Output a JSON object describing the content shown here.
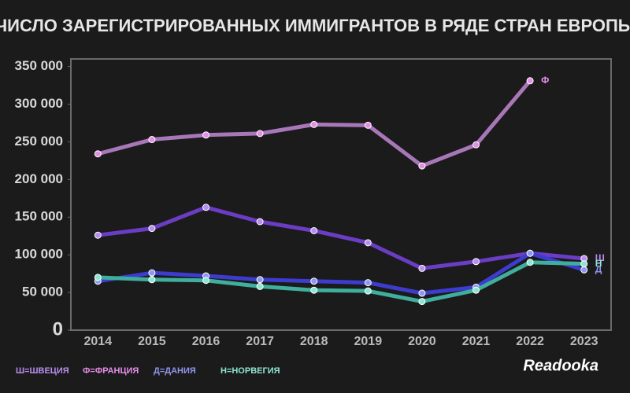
{
  "chart_data": {
    "type": "line",
    "title": "ЧИСЛО ЗАРЕГИСТРИРОВАННЫХ ИММИГРАНТОВ В РЯДЕ СТРАН ЕВРОПЫ",
    "categories": [
      "2014",
      "2015",
      "2016",
      "2017",
      "2018",
      "2019",
      "2020",
      "2021",
      "2022",
      "2023"
    ],
    "series": [
      {
        "name": "Ш=ШВЕЦИЯ",
        "end_label": "Ш",
        "color": "#6b3cc4",
        "point_color": "#b98ef0",
        "values": [
          126000,
          135000,
          163000,
          144000,
          132000,
          116000,
          82000,
          91000,
          102000,
          95000
        ]
      },
      {
        "name": "Ф=ФРАНЦИЯ",
        "end_label": "Ф",
        "color": "#a877b8",
        "point_color": "#e58ee8",
        "values": [
          234000,
          253000,
          259000,
          261000,
          273000,
          272000,
          218000,
          246000,
          331000,
          null
        ]
      },
      {
        "name": "Д=ДАНИЯ",
        "end_label": "Д",
        "color": "#3d3ccf",
        "point_color": "#8f97f0",
        "values": [
          65000,
          76000,
          72000,
          67000,
          65000,
          63000,
          49000,
          57000,
          102000,
          80000
        ]
      },
      {
        "name": "Н=НОРВЕГИЯ",
        "end_label": "Н",
        "color": "#3fae9c",
        "point_color": "#8ee6d2",
        "values": [
          70000,
          67000,
          66000,
          58000,
          53000,
          52000,
          38000,
          53000,
          90000,
          88000
        ]
      }
    ],
    "ylim": [
      0,
      360000
    ],
    "yticks": [
      0,
      {
        "value": 50000,
        "label": "50 000"
      },
      {
        "value": 100000,
        "label": "100 000"
      },
      {
        "value": 150000,
        "label": "150 000"
      },
      {
        "value": 200000,
        "label": "200 000"
      },
      {
        "value": 250000,
        "label": "250 000"
      },
      {
        "value": 300000,
        "label": "300 000"
      },
      {
        "value": 350000,
        "label": "350 000"
      }
    ],
    "brand": "Readooka"
  }
}
